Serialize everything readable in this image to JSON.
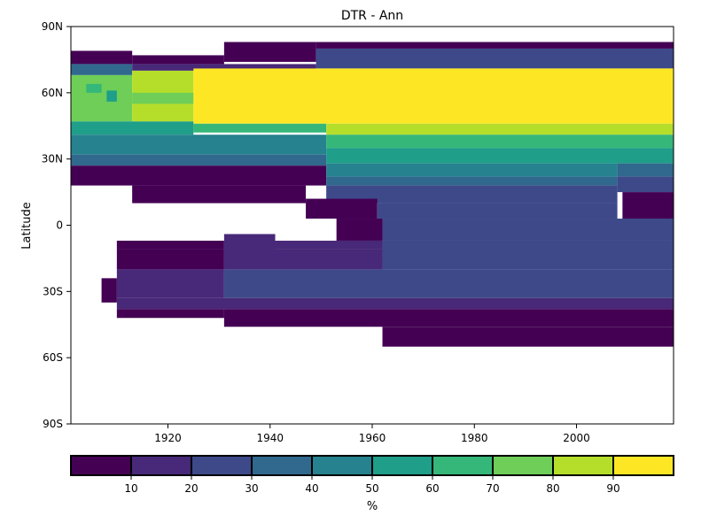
{
  "chart_data": {
    "type": "heatmap",
    "title": "DTR - Ann",
    "ylabel": "Latitude",
    "xlabel": "",
    "xlim": [
      1901,
      2019
    ],
    "ylim": [
      -90,
      90
    ],
    "x_ticks": [
      {
        "value": 1920,
        "label": "1920"
      },
      {
        "value": 1940,
        "label": "1940"
      },
      {
        "value": 1960,
        "label": "1960"
      },
      {
        "value": 1980,
        "label": "1980"
      },
      {
        "value": 2000,
        "label": "2000"
      }
    ],
    "y_ticks": [
      {
        "value": 90,
        "label": "90N"
      },
      {
        "value": 60,
        "label": "60N"
      },
      {
        "value": 30,
        "label": "30N"
      },
      {
        "value": 0,
        "label": "0"
      },
      {
        "value": -30,
        "label": "30S"
      },
      {
        "value": -60,
        "label": "60S"
      },
      {
        "value": -90,
        "label": "90S"
      }
    ],
    "colorbar": {
      "label": "%",
      "range": [
        0,
        100
      ],
      "orientation": "horizontal",
      "bounds": [
        0,
        10,
        20,
        30,
        40,
        50,
        60,
        70,
        80,
        90,
        100
      ],
      "tick_labels": [
        "10",
        "20",
        "30",
        "40",
        "50",
        "60",
        "70",
        "80",
        "90"
      ],
      "colors": [
        "#440154",
        "#482878",
        "#3e4989",
        "#31688e",
        "#26828e",
        "#1f9e89",
        "#35b779",
        "#6ece58",
        "#b5de2b",
        "#fde725"
      ]
    },
    "cells": [
      {
        "x0": 1901,
        "x1": 1913,
        "lat0": 73,
        "lat1": 79,
        "value": 5
      },
      {
        "x0": 1913,
        "x1": 1931,
        "lat0": 73,
        "lat1": 77,
        "value": 5
      },
      {
        "x0": 1931,
        "x1": 1949,
        "lat0": 74,
        "lat1": 83,
        "value": 5
      },
      {
        "x0": 1949,
        "x1": 2019,
        "lat0": 80,
        "lat1": 83,
        "value": 5
      },
      {
        "x0": 1949,
        "x1": 2019,
        "lat0": 71,
        "lat1": 80,
        "value": 25
      },
      {
        "x0": 1901,
        "x1": 1913,
        "lat0": 68,
        "lat1": 73,
        "value": 35
      },
      {
        "x0": 1913,
        "x1": 1949,
        "lat0": 70,
        "lat1": 73,
        "value": 15
      },
      {
        "x0": 1901,
        "x1": 1913,
        "lat0": 47,
        "lat1": 68,
        "value": 75
      },
      {
        "x0": 1904,
        "x1": 1907,
        "lat0": 60,
        "lat1": 64,
        "value": 65
      },
      {
        "x0": 1908,
        "x1": 1910,
        "lat0": 56,
        "lat1": 61,
        "value": 55
      },
      {
        "x0": 1913,
        "x1": 1925,
        "lat0": 47,
        "lat1": 70,
        "value": 85
      },
      {
        "x0": 1913,
        "x1": 1925,
        "lat0": 55,
        "lat1": 60,
        "value": 75
      },
      {
        "x0": 1925,
        "x1": 2019,
        "lat0": 46,
        "lat1": 71,
        "value": 95
      },
      {
        "x0": 1901,
        "x1": 1925,
        "lat0": 41,
        "lat1": 47,
        "value": 55
      },
      {
        "x0": 1925,
        "x1": 1951,
        "lat0": 42,
        "lat1": 46,
        "value": 65
      },
      {
        "x0": 1951,
        "x1": 2019,
        "lat0": 41,
        "lat1": 46,
        "value": 85
      },
      {
        "x0": 1901,
        "x1": 1951,
        "lat0": 32,
        "lat1": 41,
        "value": 45
      },
      {
        "x0": 1951,
        "x1": 2019,
        "lat0": 35,
        "lat1": 41,
        "value": 65
      },
      {
        "x0": 1951,
        "x1": 2019,
        "lat0": 28,
        "lat1": 35,
        "value": 55
      },
      {
        "x0": 1901,
        "x1": 1951,
        "lat0": 27,
        "lat1": 32,
        "value": 35
      },
      {
        "x0": 1901,
        "x1": 1951,
        "lat0": 18,
        "lat1": 27,
        "value": 5
      },
      {
        "x0": 1913,
        "x1": 1947,
        "lat0": 10,
        "lat1": 18,
        "value": 5
      },
      {
        "x0": 1951,
        "x1": 2008,
        "lat0": 22,
        "lat1": 28,
        "value": 45
      },
      {
        "x0": 2008,
        "x1": 2019,
        "lat0": 22,
        "lat1": 28,
        "value": 35
      },
      {
        "x0": 1951,
        "x1": 2008,
        "lat0": 18,
        "lat1": 22,
        "value": 35
      },
      {
        "x0": 1951,
        "x1": 2008,
        "lat0": 10,
        "lat1": 18,
        "value": 25
      },
      {
        "x0": 2008,
        "x1": 2019,
        "lat0": 15,
        "lat1": 22,
        "value": 25
      },
      {
        "x0": 1947,
        "x1": 1961,
        "lat0": 3,
        "lat1": 12,
        "value": 5
      },
      {
        "x0": 1961,
        "x1": 2008,
        "lat0": 3,
        "lat1": 10,
        "value": 25
      },
      {
        "x0": 2009,
        "x1": 2019,
        "lat0": 2,
        "lat1": 15,
        "value": 5
      },
      {
        "x0": 1953,
        "x1": 1962,
        "lat0": -7,
        "lat1": 3,
        "value": 5
      },
      {
        "x0": 1962,
        "x1": 2019,
        "lat0": -7,
        "lat1": 3,
        "value": 25
      },
      {
        "x0": 1910,
        "x1": 1931,
        "lat0": -11,
        "lat1": -7,
        "value": 5
      },
      {
        "x0": 1931,
        "x1": 1941,
        "lat0": -13,
        "lat1": -4,
        "value": 15
      },
      {
        "x0": 1941,
        "x1": 1962,
        "lat0": -11,
        "lat1": -7,
        "value": 15
      },
      {
        "x0": 1910,
        "x1": 1931,
        "lat0": -20,
        "lat1": -11,
        "value": 5
      },
      {
        "x0": 1931,
        "x1": 1962,
        "lat0": -20,
        "lat1": -11,
        "value": 15
      },
      {
        "x0": 1962,
        "x1": 2019,
        "lat0": -20,
        "lat1": -7,
        "value": 25
      },
      {
        "x0": 1910,
        "x1": 1931,
        "lat0": -33,
        "lat1": -20,
        "value": 15
      },
      {
        "x0": 1931,
        "x1": 2019,
        "lat0": -33,
        "lat1": -20,
        "value": 25
      },
      {
        "x0": 1907,
        "x1": 1910,
        "lat0": -35,
        "lat1": -24,
        "value": 5
      },
      {
        "x0": 1910,
        "x1": 2019,
        "lat0": -38,
        "lat1": -33,
        "value": 15
      },
      {
        "x0": 1910,
        "x1": 1931,
        "lat0": -42,
        "lat1": -38,
        "value": 5
      },
      {
        "x0": 1931,
        "x1": 2019,
        "lat0": -46,
        "lat1": -38,
        "value": 5
      },
      {
        "x0": 1962,
        "x1": 2019,
        "lat0": -55,
        "lat1": -46,
        "value": 5
      }
    ]
  }
}
